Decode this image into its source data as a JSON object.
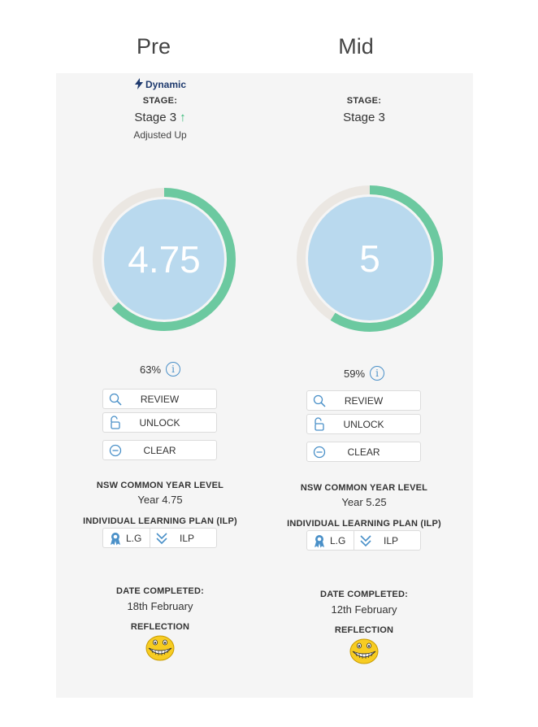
{
  "headings": {
    "pre": "Pre",
    "mid": "Mid"
  },
  "pre": {
    "dynamic_label": "Dynamic",
    "stage_label": "STAGE:",
    "stage_value": "Stage 3",
    "stage_arrow": "↑",
    "adjusted": "Adjusted Up",
    "score": "4.75",
    "progress_fraction": 0.63,
    "percent": "63%",
    "review_label": "REVIEW",
    "unlock_label": "UNLOCK",
    "clear_label": "CLEAR",
    "nsw_title": "NSW COMMON YEAR LEVEL",
    "nsw_value": "Year 4.75",
    "ilp_title": "INDIVIDUAL LEARNING PLAN (ILP)",
    "lg_label": "L.G",
    "ilp_label": "ILP",
    "date_title": "DATE COMPLETED:",
    "date_value": "18th February",
    "reflection_title": "REFLECTION"
  },
  "mid": {
    "stage_label": "STAGE:",
    "stage_value": "Stage 3",
    "score": "5",
    "progress_fraction": 0.59,
    "percent": "59%",
    "review_label": "REVIEW",
    "unlock_label": "UNLOCK",
    "clear_label": "CLEAR",
    "nsw_title": "NSW COMMON YEAR LEVEL",
    "nsw_value": "Year 5.25",
    "ilp_title": "INDIVIDUAL LEARNING PLAN (ILP)",
    "lg_label": "L.G",
    "ilp_label": "ILP",
    "date_title": "DATE COMPLETED:",
    "date_value": "12th February",
    "reflection_title": "REFLECTION"
  },
  "colors": {
    "progress": "#6cc9a0",
    "track": "#ebe7e2",
    "inner": "#b9d9ee",
    "accent": "#4a90c8",
    "stage_arrow": "#2eb872"
  },
  "icons": [
    "lightning-icon",
    "arrow-up-icon",
    "info-icon",
    "search-icon",
    "unlock-icon",
    "minus-circle-icon",
    "award-icon",
    "chevrons-down-icon",
    "smiley-icon"
  ]
}
